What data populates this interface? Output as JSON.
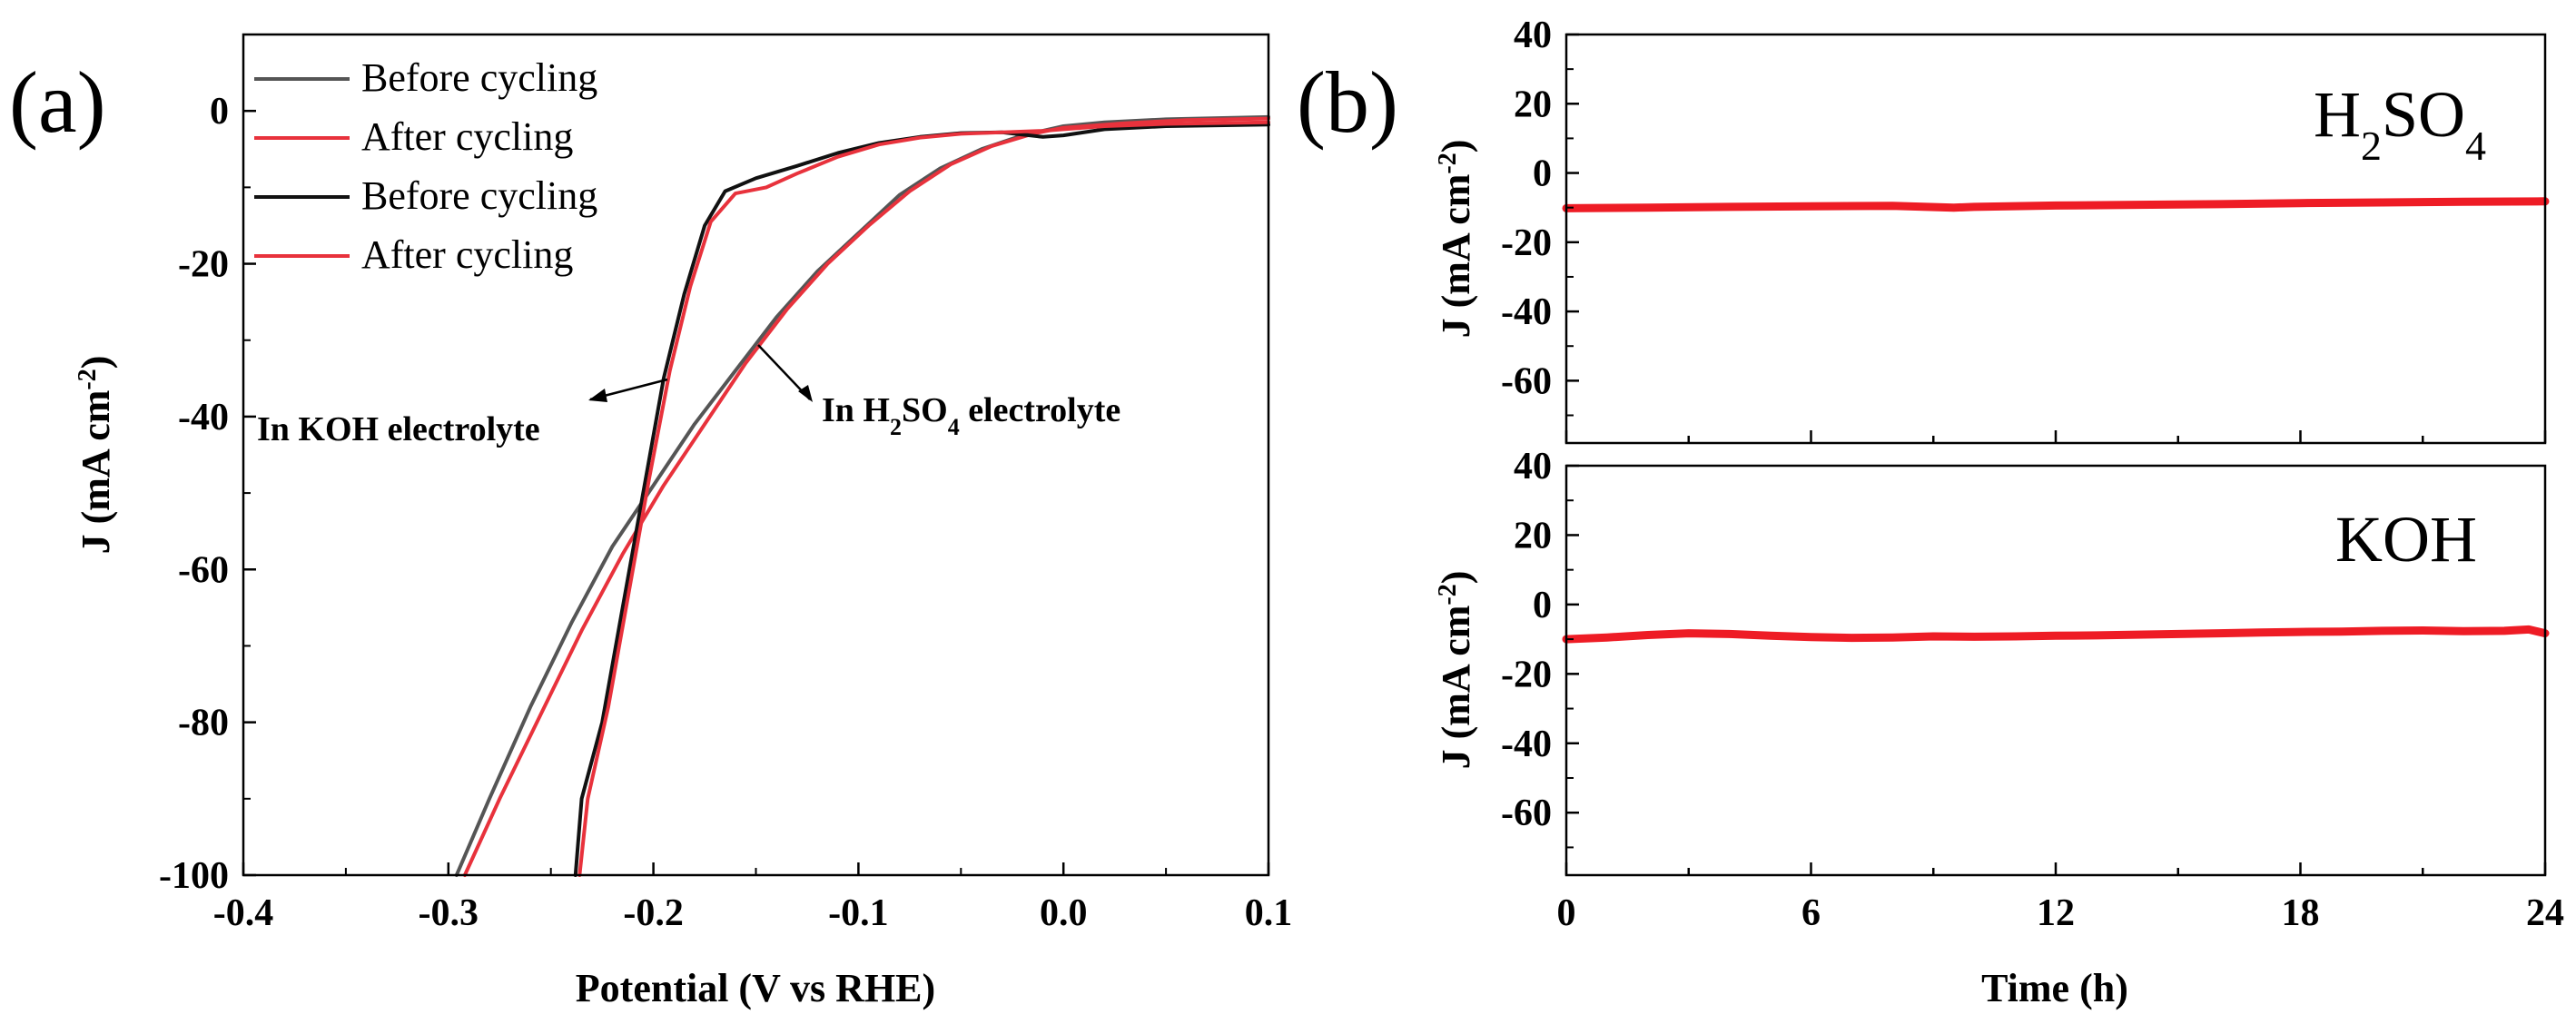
{
  "chart_data": [
    {
      "panel": "(a)",
      "type": "line",
      "title": "",
      "xlabel": "Potential (V vs RHE)",
      "ylabel": "J (mA cm-2)",
      "xlim": [
        -0.4,
        0.1
      ],
      "ylim": [
        -100,
        10
      ],
      "xticks": [
        "-0.4",
        "-0.3",
        "-0.2",
        "-0.1",
        "0.0",
        "0.1"
      ],
      "yticks": [
        "0",
        "-20",
        "-40",
        "-60",
        "-80",
        "-100"
      ],
      "legend_position": "top-left",
      "legend": [
        "Before cycling",
        "After cycling",
        "Before cycling",
        "After cycling"
      ],
      "series": [
        {
          "name": "Before cycling",
          "electrolyte": "H2SO4",
          "color": "#555555",
          "points": [
            [
              -0.296,
              -100
            ],
            [
              -0.28,
              -90
            ],
            [
              -0.26,
              -78
            ],
            [
              -0.24,
              -67
            ],
            [
              -0.22,
              -57
            ],
            [
              -0.2,
              -49
            ],
            [
              -0.18,
              -41
            ],
            [
              -0.16,
              -34
            ],
            [
              -0.14,
              -27
            ],
            [
              -0.12,
              -21
            ],
            [
              -0.1,
              -16
            ],
            [
              -0.08,
              -11
            ],
            [
              -0.06,
              -7.5
            ],
            [
              -0.04,
              -5
            ],
            [
              -0.02,
              -3.2
            ],
            [
              0.0,
              -2
            ],
            [
              0.02,
              -1.5
            ],
            [
              0.05,
              -1.1
            ],
            [
              0.1,
              -0.8
            ]
          ]
        },
        {
          "name": "After cycling",
          "electrolyte": "H2SO4",
          "color": "#e8323c",
          "points": [
            [
              -0.292,
              -100
            ],
            [
              -0.275,
              -90
            ],
            [
              -0.255,
              -79
            ],
            [
              -0.235,
              -68
            ],
            [
              -0.215,
              -58
            ],
            [
              -0.195,
              -49
            ],
            [
              -0.175,
              -41
            ],
            [
              -0.155,
              -33
            ],
            [
              -0.135,
              -26
            ],
            [
              -0.115,
              -20
            ],
            [
              -0.095,
              -15
            ],
            [
              -0.075,
              -10.5
            ],
            [
              -0.055,
              -7
            ],
            [
              -0.035,
              -4.6
            ],
            [
              -0.015,
              -3
            ],
            [
              0.0,
              -2.2
            ],
            [
              0.03,
              -1.6
            ],
            [
              0.06,
              -1.2
            ],
            [
              0.1,
              -1
            ]
          ]
        },
        {
          "name": "Before cycling",
          "electrolyte": "KOH",
          "color": "#111111",
          "points": [
            [
              -0.238,
              -100
            ],
            [
              -0.235,
              -90
            ],
            [
              -0.225,
              -80
            ],
            [
              -0.215,
              -65
            ],
            [
              -0.205,
              -50
            ],
            [
              -0.195,
              -35
            ],
            [
              -0.185,
              -24
            ],
            [
              -0.175,
              -15
            ],
            [
              -0.165,
              -10.5
            ],
            [
              -0.15,
              -8.8
            ],
            [
              -0.13,
              -7.2
            ],
            [
              -0.11,
              -5.5
            ],
            [
              -0.09,
              -4.2
            ],
            [
              -0.07,
              -3.4
            ],
            [
              -0.05,
              -2.9
            ],
            [
              -0.03,
              -2.8
            ],
            [
              -0.01,
              -3.4
            ],
            [
              0.0,
              -3.2
            ],
            [
              0.02,
              -2.4
            ],
            [
              0.05,
              -2
            ],
            [
              0.1,
              -1.8
            ]
          ]
        },
        {
          "name": "After cycling",
          "electrolyte": "KOH",
          "color": "#e8323c",
          "points": [
            [
              -0.236,
              -100
            ],
            [
              -0.232,
              -90
            ],
            [
              -0.222,
              -78
            ],
            [
              -0.212,
              -63
            ],
            [
              -0.202,
              -48
            ],
            [
              -0.192,
              -34
            ],
            [
              -0.182,
              -23
            ],
            [
              -0.172,
              -14.5
            ],
            [
              -0.16,
              -10.8
            ],
            [
              -0.145,
              -10
            ],
            [
              -0.13,
              -8.2
            ],
            [
              -0.11,
              -6
            ],
            [
              -0.09,
              -4.4
            ],
            [
              -0.07,
              -3.5
            ],
            [
              -0.05,
              -3
            ],
            [
              -0.03,
              -2.8
            ],
            [
              -0.01,
              -2.6
            ],
            [
              0.0,
              -2.4
            ],
            [
              0.02,
              -2
            ],
            [
              0.05,
              -1.7
            ],
            [
              0.1,
              -1.5
            ]
          ]
        }
      ],
      "annotations": [
        {
          "text": "In KOH electrolyte",
          "xy": [
            -0.22,
            -36
          ]
        },
        {
          "text": "In H2SO4 electrolyte",
          "xy": [
            -0.15,
            -30
          ]
        }
      ]
    },
    {
      "panel": "(b)",
      "type": "line",
      "title": "",
      "xlabel": "Time (h)",
      "xlim": [
        0,
        24
      ],
      "xticks": [
        "0",
        "6",
        "12",
        "18",
        "24"
      ],
      "subplots": [
        {
          "label": "H2SO4",
          "ylabel": "J (mA cm-2)",
          "ylim": [
            -78,
            40
          ],
          "yticks": [
            "40",
            "20",
            "0",
            "-20",
            "-40",
            "-60"
          ],
          "series": [
            {
              "name": "H2SO4",
              "color": "#ee1c25",
              "points": [
                [
                  0,
                  -10.2
                ],
                [
                  2,
                  -10
                ],
                [
                  4,
                  -9.8
                ],
                [
                  6,
                  -9.6
                ],
                [
                  8,
                  -9.5
                ],
                [
                  9.5,
                  -10
                ],
                [
                  10,
                  -9.8
                ],
                [
                  12,
                  -9.4
                ],
                [
                  14,
                  -9.2
                ],
                [
                  16,
                  -9
                ],
                [
                  18,
                  -8.7
                ],
                [
                  20,
                  -8.5
                ],
                [
                  22,
                  -8.3
                ],
                [
                  24,
                  -8.2
                ]
              ]
            }
          ]
        },
        {
          "label": "KOH",
          "ylabel": "J (mA cm-2)",
          "ylim": [
            -78,
            40
          ],
          "yticks": [
            "40",
            "20",
            "0",
            "-20",
            "-40",
            "-60"
          ],
          "series": [
            {
              "name": "KOH",
              "color": "#ee1c25",
              "points": [
                [
                  0,
                  -10
                ],
                [
                  1,
                  -9.5
                ],
                [
                  2,
                  -8.8
                ],
                [
                  3,
                  -8.3
                ],
                [
                  4,
                  -8.5
                ],
                [
                  5,
                  -9
                ],
                [
                  6,
                  -9.4
                ],
                [
                  7,
                  -9.6
                ],
                [
                  8,
                  -9.5
                ],
                [
                  9,
                  -9.2
                ],
                [
                  10,
                  -9.3
                ],
                [
                  11,
                  -9.2
                ],
                [
                  12,
                  -9
                ],
                [
                  13,
                  -8.9
                ],
                [
                  14,
                  -8.7
                ],
                [
                  15,
                  -8.5
                ],
                [
                  16,
                  -8.3
                ],
                [
                  17,
                  -8.1
                ],
                [
                  18,
                  -7.9
                ],
                [
                  19,
                  -7.8
                ],
                [
                  20,
                  -7.6
                ],
                [
                  21,
                  -7.5
                ],
                [
                  22,
                  -7.7
                ],
                [
                  23,
                  -7.6
                ],
                [
                  23.6,
                  -7.2
                ],
                [
                  24,
                  -8.3
                ]
              ]
            }
          ]
        }
      ]
    }
  ]
}
